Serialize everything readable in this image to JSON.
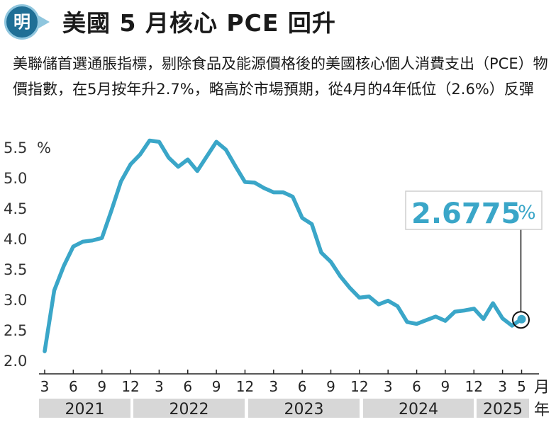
{
  "header": {
    "logo_char": "明",
    "title": "美國 5 月核心 PCE 回升"
  },
  "subtitle": "美聯儲首選通脹指標，剔除食品及能源價格後的美國核心個人消費支出（PCE）物價指數，在5月按年升2.7%，略高於市場預期，從4月的4年低位（2.6%）反彈",
  "colors": {
    "line": "#3aa6c8",
    "year_band": "#d7d7d7",
    "logo": "#1f6f96"
  },
  "chart_data": {
    "type": "line",
    "x_month_ticks": [
      "3",
      "6",
      "9",
      "12",
      "3",
      "6",
      "9",
      "12",
      "3",
      "6",
      "9",
      "12",
      "3",
      "6",
      "9",
      "12",
      "3",
      "5"
    ],
    "x_unit": "月",
    "years": [
      "2021",
      "2022",
      "2023",
      "2024",
      "2025"
    ],
    "year_unit": "年",
    "y_ticks": [
      "5.5",
      "5.0",
      "4.5",
      "4.0",
      "3.5",
      "3.0",
      "2.5",
      "2.0"
    ],
    "y_unit": "%",
    "ylim": [
      2.0,
      5.5
    ],
    "series": [
      {
        "x": [
          "2021-03",
          "2021-04",
          "2021-05",
          "2021-06",
          "2021-07",
          "2021-08",
          "2021-09",
          "2021-10",
          "2021-11",
          "2021-12",
          "2022-01",
          "2022-02",
          "2022-03",
          "2022-04",
          "2022-05",
          "2022-06",
          "2022-07",
          "2022-08",
          "2022-09",
          "2022-10",
          "2022-11",
          "2022-12",
          "2023-01",
          "2023-02",
          "2023-03",
          "2023-04",
          "2023-05",
          "2023-06",
          "2023-07",
          "2023-08",
          "2023-09",
          "2023-10",
          "2023-11",
          "2023-12",
          "2024-01",
          "2024-02",
          "2024-03",
          "2024-04",
          "2024-05",
          "2024-06",
          "2024-07",
          "2024-08",
          "2024-09",
          "2024-10",
          "2024-11",
          "2024-12",
          "2025-01",
          "2025-02",
          "2025-03",
          "2025-04",
          "2025-05"
        ],
        "values": [
          2.15,
          3.15,
          3.55,
          3.87,
          3.95,
          3.97,
          4.01,
          4.46,
          4.94,
          5.22,
          5.38,
          5.61,
          5.59,
          5.33,
          5.18,
          5.3,
          5.11,
          5.35,
          5.59,
          5.46,
          5.19,
          4.93,
          4.92,
          4.83,
          4.76,
          4.76,
          4.69,
          4.34,
          4.24,
          3.77,
          3.62,
          3.38,
          3.19,
          3.03,
          3.05,
          2.92,
          2.98,
          2.89,
          2.63,
          2.6,
          2.66,
          2.72,
          2.65,
          2.8,
          2.82,
          2.85,
          2.68,
          2.94,
          2.69,
          2.57,
          2.6775
        ]
      }
    ],
    "annotation": {
      "value": "2.6775",
      "unit": "%"
    }
  }
}
